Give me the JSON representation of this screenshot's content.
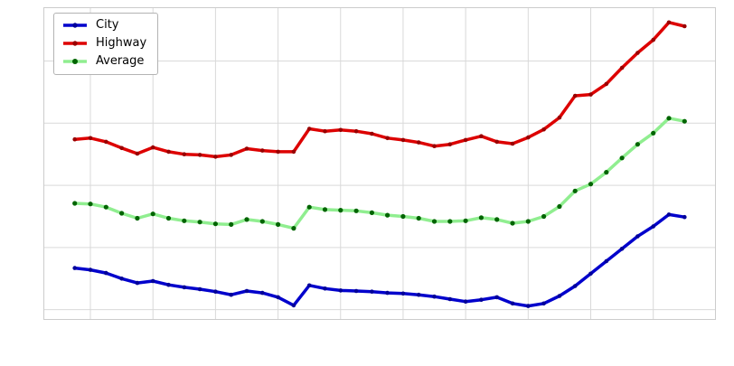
{
  "figure": {
    "background_color": "#ffffff",
    "plot_background_color": "#ffffff",
    "plot_border_color": "#cccccc"
  },
  "chart_data": {
    "type": "line",
    "title": "",
    "xlabel": "",
    "ylabel": "",
    "grid": true,
    "grid_color": "#d9d9d9",
    "tick_labels_visible": false,
    "legend_position": "upper-left",
    "x": [
      0,
      1,
      2,
      3,
      4,
      5,
      6,
      7,
      8,
      9,
      10,
      11,
      12,
      13,
      14,
      15,
      16,
      17,
      18,
      19,
      20,
      21,
      22,
      23,
      24,
      25,
      26,
      27,
      28,
      29,
      30,
      31,
      32,
      33,
      34,
      35,
      36,
      37,
      38,
      39
    ],
    "xlim": [
      -1.95,
      40.95
    ],
    "ylim": [
      8.5,
      58.5
    ],
    "xticks": [
      1,
      5,
      9,
      13,
      17,
      21,
      25,
      29,
      33,
      37
    ],
    "yticks": [
      10,
      20,
      30,
      40,
      50
    ],
    "series": [
      {
        "name": "City",
        "line_color": "#0000cc",
        "marker_color": "#000099",
        "line_width": 3.5,
        "marker_size": 2.3,
        "values": [
          16.7,
          16.4,
          15.9,
          15.0,
          14.3,
          14.6,
          14.0,
          13.6,
          13.3,
          12.9,
          12.4,
          13.0,
          12.7,
          12.0,
          10.7,
          13.9,
          13.4,
          13.1,
          13.0,
          12.9,
          12.7,
          12.6,
          12.4,
          12.1,
          11.7,
          11.3,
          11.6,
          12.0,
          11.0,
          10.6,
          11.0,
          12.2,
          13.8,
          15.8,
          17.8,
          19.8,
          21.8,
          23.4,
          25.3,
          24.9
        ]
      },
      {
        "name": "Highway",
        "line_color": "#dd0000",
        "marker_color": "#990000",
        "line_width": 3.5,
        "marker_size": 2.3,
        "values": [
          37.4,
          37.6,
          37.0,
          36.0,
          35.1,
          36.1,
          35.4,
          35.0,
          34.9,
          34.6,
          34.9,
          35.9,
          35.6,
          35.4,
          35.4,
          39.1,
          38.7,
          38.9,
          38.7,
          38.3,
          37.6,
          37.3,
          36.9,
          36.3,
          36.6,
          37.3,
          37.9,
          37.0,
          36.7,
          37.7,
          39.0,
          40.9,
          44.4,
          44.6,
          46.3,
          48.9,
          51.3,
          53.4,
          56.2,
          55.6
        ]
      },
      {
        "name": "Average",
        "line_color": "#90ee90",
        "marker_color": "#006400",
        "line_width": 3.5,
        "marker_size": 2.6,
        "values": [
          27.1,
          27.0,
          26.5,
          25.5,
          24.7,
          25.4,
          24.7,
          24.3,
          24.1,
          23.8,
          23.7,
          24.5,
          24.2,
          23.7,
          23.1,
          26.5,
          26.1,
          26.0,
          25.9,
          25.6,
          25.2,
          25.0,
          24.7,
          24.2,
          24.2,
          24.3,
          24.8,
          24.5,
          23.9,
          24.2,
          25.0,
          26.6,
          29.1,
          30.2,
          32.1,
          34.4,
          36.6,
          38.4,
          40.8,
          40.3
        ]
      }
    ]
  }
}
